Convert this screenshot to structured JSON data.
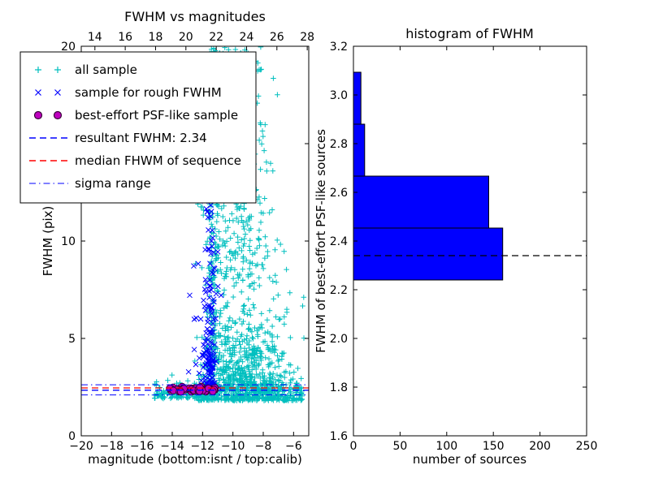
{
  "figure": {
    "background": "#ffffff"
  },
  "colors": {
    "cyan": "#00bfbf",
    "blue": "#0000ff",
    "magenta": "#bf00bf",
    "magenta_edge": "#3a003a",
    "red": "#ff0000",
    "hist_bar": "#0000ff",
    "black": "#000000"
  },
  "legend": {
    "items": [
      {
        "label": "all sample",
        "marker": "plus",
        "color_key": "cyan"
      },
      {
        "label": "sample for rough FWHM",
        "marker": "x",
        "color_key": "blue"
      },
      {
        "label": "best-effort PSF-like sample",
        "marker": "circle",
        "color_key": "magenta"
      },
      {
        "label": "resultant FWHM: 2.34",
        "marker": "dashed-line",
        "color_key": "blue"
      },
      {
        "label": "median FHWM of sequence",
        "marker": "dashed-line",
        "color_key": "red"
      },
      {
        "label": "sigma range",
        "marker": "dashdot-line",
        "color_key": "blue"
      }
    ]
  },
  "chart_data": [
    {
      "type": "scatter",
      "title": "FWHM vs magnitudes",
      "xlabel": "magnitude (bottom:isnt / top:calib)",
      "ylabel": "FWHM (pix)",
      "xlim": [
        -20,
        -5
      ],
      "ylim": [
        0,
        20
      ],
      "x_ticks": [
        {
          "v": -20,
          "t": "−20"
        },
        {
          "v": -18,
          "t": "−18"
        },
        {
          "v": -16,
          "t": "−16"
        },
        {
          "v": -14,
          "t": "−14"
        },
        {
          "v": -12,
          "t": "−12"
        },
        {
          "v": -10,
          "t": "−10"
        },
        {
          "v": -8,
          "t": "−8"
        },
        {
          "v": -6,
          "t": "−6"
        }
      ],
      "y_ticks": [
        {
          "v": 0,
          "t": "0"
        },
        {
          "v": 5,
          "t": "5"
        },
        {
          "v": 10,
          "t": "10"
        },
        {
          "v": 15,
          "t": "15"
        },
        {
          "v": 20,
          "t": "20"
        }
      ],
      "top_axis": {
        "offset": -33.1,
        "ticks": [
          {
            "v": 14,
            "t": "14"
          },
          {
            "v": 16,
            "t": "16"
          },
          {
            "v": 18,
            "t": "18"
          },
          {
            "v": 20,
            "t": "20"
          },
          {
            "v": 22,
            "t": "22"
          },
          {
            "v": 24,
            "t": "24"
          },
          {
            "v": 26,
            "t": "26"
          },
          {
            "v": 28,
            "t": "28"
          }
        ]
      },
      "hlines": [
        {
          "y": 2.62,
          "color_key": "blue",
          "style": "dashdot",
          "name": "sigma-upper"
        },
        {
          "y": 2.46,
          "color_key": "red",
          "style": "dashed",
          "name": "median-fwhm"
        },
        {
          "y": 2.34,
          "color_key": "blue",
          "style": "dashed",
          "name": "resultant-fwhm"
        },
        {
          "y": 2.1,
          "color_key": "blue",
          "style": "dashdot",
          "name": "sigma-lower"
        }
      ],
      "resultant_fwhm": 2.34,
      "seed": 7,
      "series": [
        {
          "name": "all sample",
          "marker": "plus",
          "color_key": "cyan",
          "clusters": [
            {
              "n": 430,
              "x": {
                "dist": "uniform",
                "min": -12.3,
                "max": -5.4
              },
              "y": {
                "dist": "exp",
                "base": 1.8,
                "scale": 0.35,
                "max": 3.4
              }
            },
            {
              "n": 100,
              "x": {
                "dist": "uniform",
                "min": -15.2,
                "max": -12.3
              },
              "y": {
                "dist": "exp",
                "base": 1.9,
                "scale": 0.3,
                "max": 3.2
              }
            },
            {
              "n": 560,
              "x": {
                "dist": "normal",
                "mean": -9.2,
                "sd": 1.35,
                "min": -12.6,
                "max": -5.3
              },
              "y": {
                "dist": "exp",
                "base": 2.3,
                "scale": 2.0,
                "max": 13
              }
            },
            {
              "n": 210,
              "x": {
                "dist": "normal",
                "mean": -11.35,
                "sd": 0.2
              },
              "y": {
                "dist": "uniform",
                "min": 2.6,
                "max": 20
              }
            },
            {
              "n": 170,
              "x": {
                "dist": "normal",
                "mean": -9.6,
                "sd": 1.15,
                "min": -12.4,
                "max": -5.6
              },
              "y": {
                "dist": "uniform",
                "min": 12,
                "max": 20
              }
            },
            {
              "n": 130,
              "x": {
                "dist": "normal",
                "mean": -9.8,
                "sd": 1.25,
                "min": -12.5,
                "max": -5.6
              },
              "y": {
                "dist": "uniform",
                "min": 8,
                "max": 12
              }
            }
          ]
        },
        {
          "name": "sample for rough FWHM",
          "marker": "x",
          "color_key": "blue",
          "clusters": [
            {
              "n": 115,
              "x": {
                "dist": "normal",
                "mean": -11.55,
                "sd": 0.22
              },
              "y": {
                "dist": "exp",
                "base": 2.4,
                "scale": 2.6,
                "max": 16
              }
            },
            {
              "n": 45,
              "x": {
                "dist": "normal",
                "mean": -11.45,
                "sd": 0.28
              },
              "y": {
                "dist": "uniform",
                "min": 4,
                "max": 13
              }
            },
            {
              "n": 10,
              "x": {
                "dist": "normal",
                "mean": -12.4,
                "sd": 0.25
              },
              "y": {
                "dist": "uniform",
                "min": 2.8,
                "max": 9
              }
            },
            {
              "n": 6,
              "x": {
                "dist": "normal",
                "mean": -11.4,
                "sd": 0.2
              },
              "y": {
                "dist": "uniform",
                "min": 16,
                "max": 19.8
              }
            }
          ]
        },
        {
          "name": "best-effort PSF-like sample",
          "marker": "circle",
          "color_key": "magenta",
          "clusters": [
            {
              "n": 60,
              "x": {
                "dist": "uniform",
                "min": -14.25,
                "max": -11.15
              },
              "y": {
                "dist": "normal",
                "mean": 2.38,
                "sd": 0.07,
                "min": 2.24,
                "max": 2.58
              }
            }
          ]
        }
      ]
    },
    {
      "type": "histogram_horizontal",
      "title": "histogram of FWHM",
      "xlabel": "number of sources",
      "ylabel": "FWHM of best-effort PSF-like sources",
      "xlim": [
        0,
        250
      ],
      "ylim": [
        1.6,
        3.2
      ],
      "x_ticks": [
        {
          "v": 0,
          "t": "0"
        },
        {
          "v": 50,
          "t": "50"
        },
        {
          "v": 100,
          "t": "100"
        },
        {
          "v": 150,
          "t": "150"
        },
        {
          "v": 200,
          "t": "200"
        },
        {
          "v": 250,
          "t": "250"
        }
      ],
      "y_ticks": [
        {
          "v": 1.6,
          "t": "1.6"
        },
        {
          "v": 1.8,
          "t": "1.8"
        },
        {
          "v": 2.0,
          "t": "2.0"
        },
        {
          "v": 2.2,
          "t": "2.2"
        },
        {
          "v": 2.4,
          "t": "2.4"
        },
        {
          "v": 2.6,
          "t": "2.6"
        },
        {
          "v": 2.8,
          "t": "2.8"
        },
        {
          "v": 3.0,
          "t": "3.0"
        },
        {
          "v": 3.2,
          "t": "3.2"
        }
      ],
      "bins": [
        {
          "from": 2.24,
          "to": 2.4533,
          "count": 160
        },
        {
          "from": 2.4533,
          "to": 2.6667,
          "count": 145
        },
        {
          "from": 2.6667,
          "to": 2.88,
          "count": 12
        },
        {
          "from": 2.88,
          "to": 3.0933,
          "count": 8
        }
      ],
      "median_line": {
        "y": 2.34,
        "style": "dashed",
        "color_key": "black"
      }
    }
  ]
}
